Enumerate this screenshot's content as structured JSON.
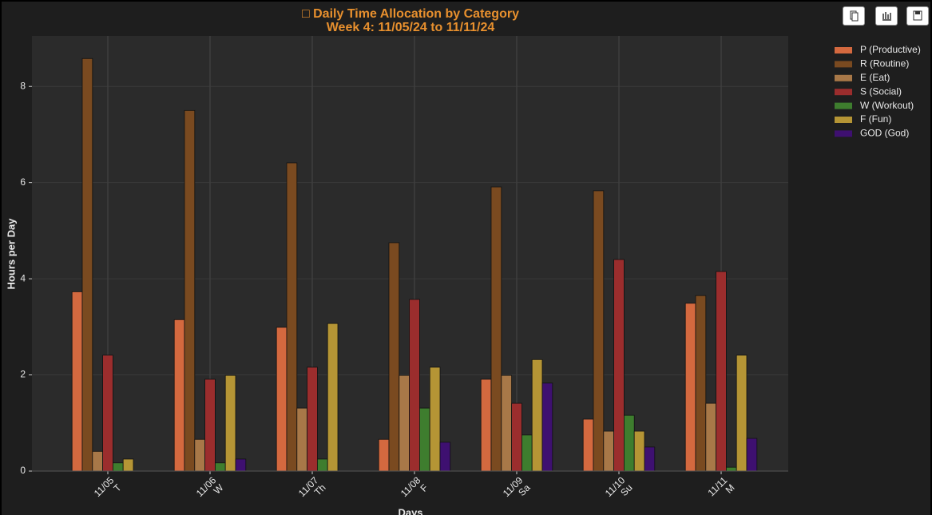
{
  "chart_data": {
    "type": "bar",
    "title": "□ Daily Time Allocation by Category",
    "subtitle": "Week 4: 11/05/24 to 11/11/24",
    "x_label": "Days",
    "y_label": "Hours per Day",
    "categories": [
      "11/05",
      "11/06",
      "11/07",
      "11/08",
      "11/09",
      "11/10",
      "11/11"
    ],
    "weekdays": [
      "T",
      "W",
      "Th",
      "F",
      "Sa",
      "Su",
      "M"
    ],
    "series": [
      {
        "name": "P (Productive)",
        "color": "#d4693f",
        "values": [
          3.73,
          3.15,
          2.99,
          0.66,
          1.91,
          1.08,
          3.49
        ]
      },
      {
        "name": "R (Routine)",
        "color": "#7a4a20",
        "values": [
          8.58,
          7.5,
          6.41,
          4.75,
          5.91,
          5.83,
          3.65
        ]
      },
      {
        "name": "E (Eat)",
        "color": "#a87848",
        "values": [
          0.41,
          0.66,
          1.31,
          1.99,
          1.99,
          0.83,
          1.41
        ]
      },
      {
        "name": "S (Social)",
        "color": "#9b2d2d",
        "values": [
          2.41,
          1.91,
          2.16,
          3.57,
          1.41,
          4.4,
          4.15
        ]
      },
      {
        "name": "W (Workout)",
        "color": "#3e7d2e",
        "values": [
          0.17,
          0.17,
          0.25,
          1.31,
          0.75,
          1.16,
          0.08
        ]
      },
      {
        "name": "F (Fun)",
        "color": "#b59535",
        "values": [
          0.25,
          1.99,
          3.07,
          2.16,
          2.32,
          0.83,
          2.41
        ]
      },
      {
        "name": "GOD (God)",
        "color": "#3e1070",
        "values": [
          0,
          0.25,
          0,
          0.6,
          1.83,
          0.5,
          0.68
        ]
      }
    ],
    "ylim": [
      0,
      9.05
    ],
    "yticks": [
      0,
      2,
      4,
      6,
      8
    ],
    "grid": true,
    "legend": "upper right"
  }
}
